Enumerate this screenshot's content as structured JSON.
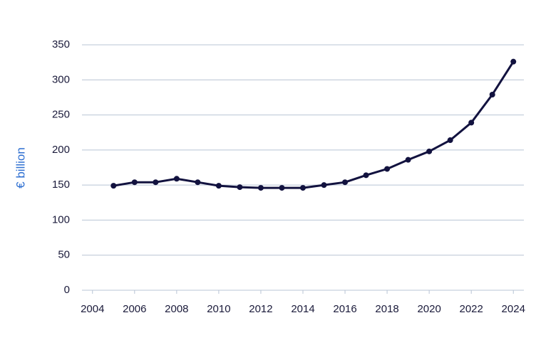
{
  "chart_data": {
    "type": "line",
    "y_label": "€ billion",
    "x": [
      2005,
      2006,
      2007,
      2008,
      2009,
      2010,
      2011,
      2012,
      2013,
      2014,
      2015,
      2016,
      2017,
      2018,
      2019,
      2020,
      2021,
      2022,
      2023,
      2024
    ],
    "series": [
      {
        "name": "Value",
        "color": "#12123f",
        "values": [
          149,
          154,
          154,
          159,
          154,
          149,
          147,
          146,
          146,
          146,
          150,
          154,
          164,
          173,
          186,
          198,
          214,
          239,
          279,
          326
        ]
      }
    ],
    "xlim": [
      2003.5,
      2024.5
    ],
    "xticks": [
      2004,
      2006,
      2008,
      2010,
      2012,
      2014,
      2016,
      2018,
      2020,
      2022,
      2024
    ],
    "ylim": [
      0,
      350
    ],
    "yticks": [
      0,
      50,
      100,
      150,
      200,
      250,
      300,
      350
    ],
    "grid": true
  }
}
